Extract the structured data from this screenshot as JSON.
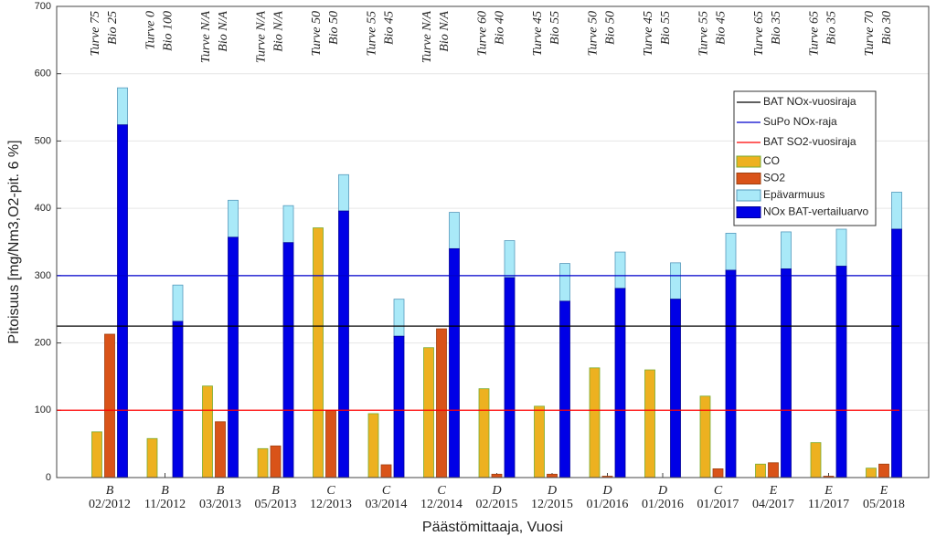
{
  "chart_data": {
    "type": "bar",
    "y_label": "Pitoisuus [mg/Nm3,O2-pit. 6 %]",
    "x_label": "Päästömittaaja, Vuosi",
    "operators": [
      "B",
      "B",
      "B",
      "B",
      "C",
      "C",
      "C",
      "D",
      "D",
      "D",
      "D",
      "C",
      "E",
      "E",
      "E"
    ],
    "categories": [
      "02/2012",
      "11/2012",
      "03/2013",
      "05/2013",
      "12/2013",
      "03/2014",
      "12/2014",
      "02/2015",
      "12/2015",
      "01/2016",
      "01/2016",
      "01/2017",
      "04/2017",
      "11/2017",
      "05/2018"
    ],
    "annotations": [
      [
        "Turve 75",
        "Bio 25"
      ],
      [
        "Turve 0",
        "Bio 100"
      ],
      [
        "Turve N/A",
        "Bio N/A"
      ],
      [
        "Turve N/A",
        "Bio N/A"
      ],
      [
        "Turve 50",
        "Bio 50"
      ],
      [
        "Turve 55",
        "Bio 45"
      ],
      [
        "Turve N/A",
        "Bio N/A"
      ],
      [
        "Turve 60",
        "Bio 40"
      ],
      [
        "Turve 45",
        "Bio 55"
      ],
      [
        "Turve 50",
        "Bio 50"
      ],
      [
        "Turve 45",
        "Bio 55"
      ],
      [
        "Turve 55",
        "Bio 45"
      ],
      [
        "Turve 65",
        "Bio 35"
      ],
      [
        "Turve 65",
        "Bio 35"
      ],
      [
        "Turve 70",
        "Bio 30"
      ]
    ],
    "series": [
      {
        "name": "CO",
        "color": "#EDB120",
        "edge": "#77AC30",
        "values": [
          68,
          58,
          136,
          43,
          371,
          95,
          193,
          132,
          106,
          163,
          160,
          121,
          20,
          52,
          14
        ]
      },
      {
        "name": "SO2",
        "color": "#D95319",
        "edge": "#A0400F",
        "values": [
          213,
          0,
          83,
          47,
          100,
          19,
          221,
          5,
          5,
          2,
          0,
          13,
          22,
          2,
          20
        ]
      },
      {
        "name": "Epävarmuus",
        "color": "#A9E9F8",
        "edge": "#5599bb",
        "stack_on": 3,
        "values": [
          55,
          54,
          55,
          55,
          54,
          55,
          54,
          55,
          56,
          54,
          54,
          55,
          55,
          55,
          55
        ]
      },
      {
        "name": "NOx BAT-vertailuarvo",
        "color": "#0000E6",
        "edge": "#000099",
        "values": [
          524,
          232,
          357,
          349,
          396,
          210,
          340,
          297,
          262,
          281,
          265,
          308,
          310,
          314,
          369
        ]
      }
    ],
    "hlines": [
      {
        "name": "BAT NOx-vuosiraja",
        "color": "#000000",
        "value": 225
      },
      {
        "name": "SuPo NOx-raja",
        "color": "#0000CC",
        "value": 300
      },
      {
        "name": "BAT SO2-vuosiraja",
        "color": "#FF0000",
        "value": 100
      }
    ],
    "ylim": [
      0,
      700
    ],
    "yticks": [
      0,
      100,
      200,
      300,
      400,
      500,
      600,
      700
    ],
    "grid": true
  }
}
